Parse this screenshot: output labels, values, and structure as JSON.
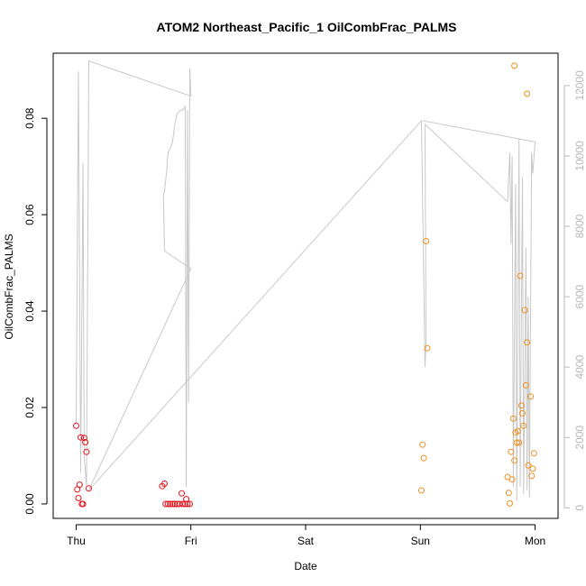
{
  "chart_data": {
    "type": "scatter",
    "title": "ATOM2 Northeast_Pacific_1 OilCombFrac_PALMS",
    "xlabel": "Date",
    "ylabel": "OilCombFrac_PALMS",
    "x_axis": {
      "unit": "days",
      "range": [
        -0.2,
        4.2
      ],
      "ticks": [
        {
          "value": 0,
          "label": "Thu"
        },
        {
          "value": 1,
          "label": "Fri"
        },
        {
          "value": 2,
          "label": "Sat"
        },
        {
          "value": 3,
          "label": "Sun"
        },
        {
          "value": 4,
          "label": "Mon"
        }
      ]
    },
    "y_axis": {
      "range": [
        -0.003,
        0.0935
      ],
      "ticks": [
        0.0,
        0.02,
        0.04,
        0.06,
        0.08
      ],
      "tick_labels": [
        "0.00",
        "0.02",
        "0.04",
        "0.06",
        "0.08"
      ]
    },
    "y2_axis": {
      "range": [
        -300,
        12920
      ],
      "ticks": [
        0,
        2000,
        4000,
        6000,
        8000,
        10000,
        12000
      ],
      "tick_labels": [
        "0",
        "2000",
        "4000",
        "6000",
        "8000",
        "10000",
        "12000"
      ],
      "color": "#b8b8b8"
    },
    "grid": false,
    "series": [
      {
        "marker": "open-circle",
        "color": "#e8131b",
        "points": [
          [
            0.0,
            0.0162
          ],
          [
            0.01,
            0.003
          ],
          [
            0.02,
            0.0012
          ],
          [
            0.03,
            0.004
          ],
          [
            0.04,
            0.0138
          ],
          [
            0.05,
            0.0
          ],
          [
            0.06,
            0.0
          ],
          [
            0.07,
            0.0137
          ],
          [
            0.08,
            0.0128
          ],
          [
            0.09,
            0.0108
          ],
          [
            0.11,
            0.0032
          ],
          [
            0.75,
            0.0037
          ],
          [
            0.77,
            0.0042
          ],
          [
            0.78,
            0.0
          ],
          [
            0.8,
            0.0
          ],
          [
            0.82,
            0.0
          ],
          [
            0.84,
            0.0
          ],
          [
            0.86,
            0.0
          ],
          [
            0.88,
            0.0
          ],
          [
            0.9,
            0.0
          ],
          [
            0.92,
            0.0022
          ],
          [
            0.93,
            0.0
          ],
          [
            0.95,
            0.0
          ],
          [
            0.96,
            0.001
          ],
          [
            0.97,
            0.0
          ],
          [
            0.99,
            0.0
          ]
        ]
      },
      {
        "marker": "open-circle",
        "color": "#f0901e",
        "points": [
          [
            3.01,
            0.0028
          ],
          [
            3.02,
            0.0123
          ],
          [
            3.03,
            0.0095
          ],
          [
            3.05,
            0.0545
          ],
          [
            3.06,
            0.0323
          ],
          [
            3.76,
            0.0056
          ],
          [
            3.77,
            0.0023
          ],
          [
            3.78,
            0.0001
          ],
          [
            3.79,
            0.0108
          ],
          [
            3.8,
            0.0051
          ],
          [
            3.81,
            0.0177
          ],
          [
            3.82,
            0.009
          ],
          [
            3.83,
            0.0148
          ],
          [
            3.84,
            0.0127
          ],
          [
            3.85,
            0.0151
          ],
          [
            3.86,
            0.0127
          ],
          [
            3.87,
            0.0473
          ],
          [
            3.88,
            0.0204
          ],
          [
            3.89,
            0.0188
          ],
          [
            3.9,
            0.0162
          ],
          [
            3.91,
            0.0402
          ],
          [
            3.92,
            0.0246
          ],
          [
            3.93,
            0.0335
          ],
          [
            3.94,
            0.008
          ],
          [
            3.96,
            0.0223
          ],
          [
            3.97,
            0.0058
          ],
          [
            3.98,
            0.0073
          ],
          [
            3.99,
            0.0105
          ],
          [
            3.82,
            0.0909
          ],
          [
            3.93,
            0.0851
          ]
        ]
      }
    ],
    "secondary_line": {
      "axis": "right",
      "color": "#c8c8c8",
      "points": [
        [
          0.0,
          2400
        ],
        [
          0.02,
          12400
        ],
        [
          0.04,
          1000
        ],
        [
          0.06,
          9800
        ],
        [
          0.07,
          1500
        ],
        [
          0.09,
          600
        ],
        [
          0.11,
          12700
        ],
        [
          1.0,
          11700
        ],
        [
          0.99,
          12500
        ],
        [
          0.98,
          3000
        ],
        [
          0.97,
          11300
        ],
        [
          0.96,
          600
        ],
        [
          0.95,
          11400
        ],
        [
          0.93,
          11300
        ],
        [
          0.91,
          11300
        ],
        [
          0.88,
          11200
        ],
        [
          0.86,
          10900
        ],
        [
          0.84,
          10400
        ],
        [
          0.82,
          10200
        ],
        [
          0.8,
          10100
        ],
        [
          0.79,
          9600
        ],
        [
          0.77,
          9000
        ],
        [
          0.76,
          8900
        ],
        [
          0.77,
          7300
        ],
        [
          1.0,
          6800
        ],
        [
          0.11,
          500
        ],
        [
          3.01,
          11000
        ],
        [
          3.04,
          4000
        ],
        [
          3.05,
          4700
        ],
        [
          3.04,
          10900
        ],
        [
          3.76,
          8700
        ],
        [
          3.78,
          10100
        ],
        [
          3.79,
          7500
        ],
        [
          3.8,
          10000
        ],
        [
          3.81,
          600
        ],
        [
          3.83,
          9200
        ],
        [
          3.84,
          200
        ],
        [
          3.86,
          10500
        ],
        [
          3.87,
          600
        ],
        [
          3.89,
          9400
        ],
        [
          3.9,
          400
        ],
        [
          3.92,
          7400
        ],
        [
          3.93,
          500
        ],
        [
          3.94,
          6000
        ],
        [
          3.95,
          300
        ],
        [
          3.97,
          10100
        ],
        [
          3.98,
          9500
        ],
        [
          4.0,
          10400
        ],
        [
          3.02,
          11000
        ]
      ]
    }
  }
}
